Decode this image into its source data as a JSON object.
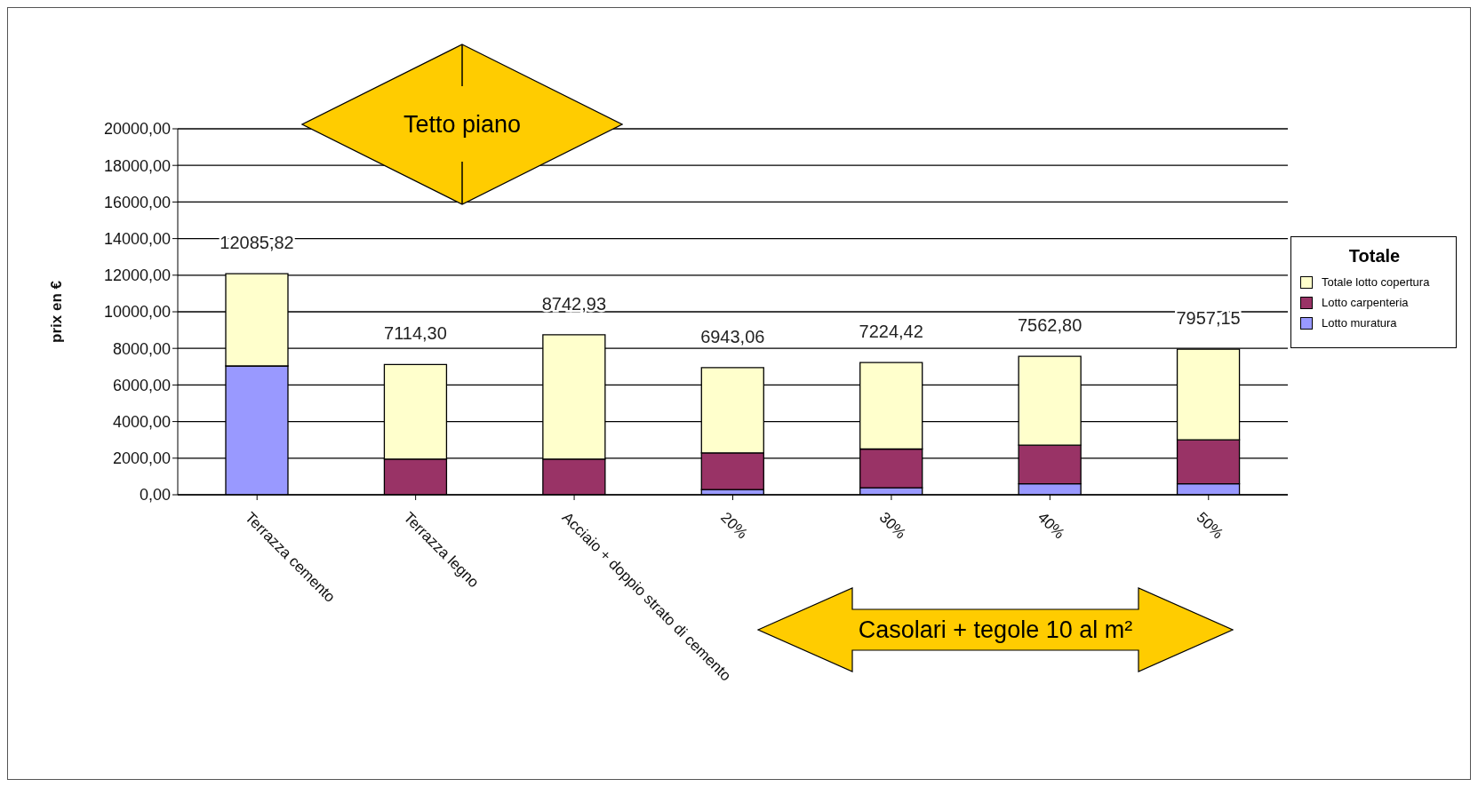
{
  "chart_data": {
    "type": "bar",
    "stacked": true,
    "ylabel": "prix en €",
    "legend_title": "Totale",
    "legend": "right",
    "grid": "y",
    "categories": [
      "Terrazza cemento",
      "Terrazza legno",
      "Acciaio + doppio strato di cemento",
      "20%",
      "30%",
      "40%",
      "50%"
    ],
    "series": [
      {
        "name": "Lotto muratura",
        "color": "#9999ff",
        "values": [
          7040,
          0,
          0,
          290,
          380,
          600,
          600
        ]
      },
      {
        "name": "Lotto carpenteria",
        "color": "#993366",
        "values": [
          0,
          1950,
          1950,
          2000,
          2120,
          2110,
          2400
        ]
      },
      {
        "name": "Totale lotto copertura",
        "color": "#ffffcc",
        "values": [
          5045.82,
          5164.3,
          6792.93,
          4653.06,
          4724.42,
          4852.8,
          4957.15
        ]
      }
    ],
    "totals": [
      "12085,82",
      "7114,30",
      "8742,93",
      "6943,06",
      "7224,42",
      "7562,80",
      "7957,15"
    ],
    "ylim": [
      0,
      20000
    ],
    "yticks": [
      {
        "value": 0,
        "label": "0,00"
      },
      {
        "value": 2000,
        "label": "2000,00"
      },
      {
        "value": 4000,
        "label": "4000,00"
      },
      {
        "value": 6000,
        "label": "6000,00"
      },
      {
        "value": 8000,
        "label": "8000,00"
      },
      {
        "value": 10000,
        "label": "10000,00"
      },
      {
        "value": 12000,
        "label": "12000,00"
      },
      {
        "value": 14000,
        "label": "14000,00"
      },
      {
        "value": 16000,
        "label": "16000,00"
      },
      {
        "value": 18000,
        "label": "18000,00"
      },
      {
        "value": 20000,
        "label": "20000,00"
      }
    ],
    "annotations": [
      "Tetto piano",
      "Casolari + tegole 10 al m²"
    ]
  }
}
